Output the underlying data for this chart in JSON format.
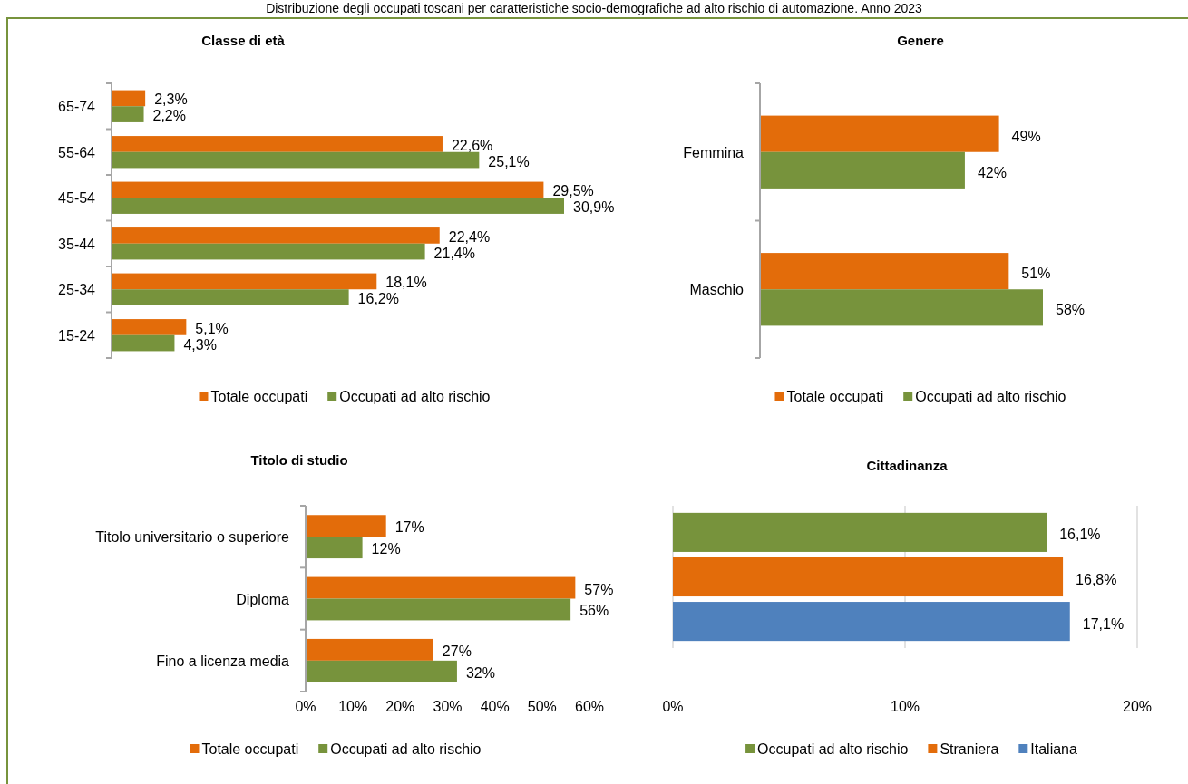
{
  "chart_data": [
    {
      "type": "bar",
      "orientation": "horizontal",
      "title": "Classe di età",
      "annotations": [
        "Distribuzione degli occupati toscani per caratteristiche socio-demografiche ad alto rischio di automazione. Anno 2023"
      ],
      "categories": [
        "65-74",
        "55-64",
        "45-54",
        "35-44",
        "25-34",
        "15-24"
      ],
      "series": [
        {
          "name": "Totale occupati",
          "color": "#e36c0a",
          "values": [
            2.3,
            22.6,
            29.5,
            22.4,
            18.1,
            5.1
          ],
          "value_labels": [
            "2,3%",
            "22,6%",
            "29,5%",
            "22,4%",
            "18,1%",
            "5,1%"
          ]
        },
        {
          "name": "Occupati ad alto rischio",
          "color": "#77933c",
          "values": [
            2.2,
            25.1,
            30.9,
            21.4,
            16.2,
            4.3
          ],
          "value_labels": [
            "2,2%",
            "25,1%",
            "30,9%",
            "21,4%",
            "16,2%",
            "4,3%"
          ]
        }
      ],
      "legend": "bottom",
      "tick_labels": "y"
    },
    {
      "type": "bar",
      "orientation": "horizontal",
      "title": "Genere",
      "categories": [
        "Femmina",
        "Maschio"
      ],
      "series": [
        {
          "name": "Totale occupati",
          "color": "#e36c0a",
          "values": [
            49,
            51
          ],
          "value_labels": [
            "49%",
            "51%"
          ]
        },
        {
          "name": "Occupati ad alto rischio",
          "color": "#77933c",
          "values": [
            42,
            58
          ],
          "value_labels": [
            "42%",
            "58%"
          ]
        }
      ],
      "legend": "bottom",
      "tick_labels": "y"
    },
    {
      "type": "bar",
      "orientation": "horizontal",
      "title": "Titolo di studio",
      "categories": [
        "Titolo universitario o superiore",
        "Diploma",
        "Fino a licenza media"
      ],
      "series": [
        {
          "name": "Totale occupati",
          "color": "#e36c0a",
          "values": [
            17,
            57,
            27
          ],
          "value_labels": [
            "17%",
            "57%",
            "27%"
          ]
        },
        {
          "name": "Occupati ad alto rischio",
          "color": "#77933c",
          "values": [
            12,
            56,
            32
          ],
          "value_labels": [
            "12%",
            "56%",
            "32%"
          ]
        }
      ],
      "xlim": [
        0,
        60
      ],
      "xticks": [
        {
          "value": 0,
          "label": "0%"
        },
        {
          "value": 10,
          "label": "10%"
        },
        {
          "value": 20,
          "label": "20%"
        },
        {
          "value": 30,
          "label": "30%"
        },
        {
          "value": 40,
          "label": "40%"
        },
        {
          "value": 50,
          "label": "50%"
        },
        {
          "value": 60,
          "label": "60%"
        }
      ],
      "legend": "bottom"
    },
    {
      "type": "bar",
      "orientation": "horizontal",
      "title": "Cittadinanza",
      "categories": [
        null
      ],
      "series": [
        {
          "name": "Occupati ad alto rischio",
          "color": "#77933c",
          "values": [
            16.1
          ],
          "value_labels": [
            "16,1%"
          ]
        },
        {
          "name": "Straniera",
          "color": "#e36c0a",
          "values": [
            16.8
          ],
          "value_labels": [
            "16,8%"
          ]
        },
        {
          "name": "Italiana",
          "color": "#4f81bd",
          "values": [
            17.1
          ],
          "value_labels": [
            "17,1%"
          ]
        }
      ],
      "xlim": [
        0,
        20
      ],
      "xticks": [
        {
          "value": 0,
          "label": "0%"
        },
        {
          "value": 10,
          "label": "10%"
        },
        {
          "value": 20,
          "label": "20%"
        }
      ],
      "grid": "x",
      "legend": "bottom",
      "tick_labels": "x"
    }
  ]
}
